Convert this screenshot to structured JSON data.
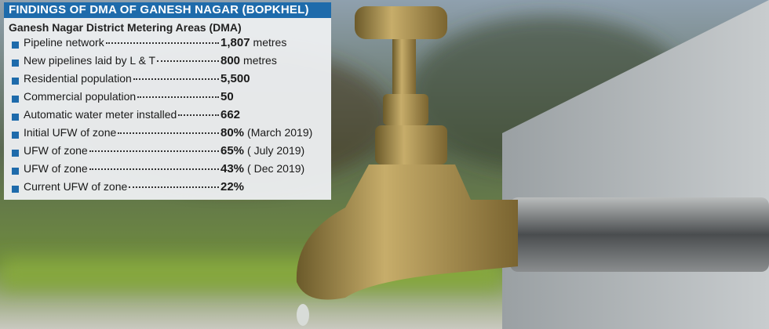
{
  "header": {
    "title": "FINDINGS OF DMA OF GANESH NAGAR (BOPKHEL)",
    "subtitle": "Ganesh Nagar District Metering Areas (DMA)"
  },
  "table": {
    "rows": [
      {
        "label": "Pipeline network",
        "value": "1,807",
        "note": "metres"
      },
      {
        "label": "New pipelines laid by L & T",
        "value": "800",
        "note": "metres"
      },
      {
        "label": "Residential population",
        "value": "5,500"
      },
      {
        "label": "Commercial population",
        "value": "50"
      },
      {
        "label": "Automatic water meter installed",
        "value": "662"
      },
      {
        "label": "Initial UFW of zone",
        "value": "80%",
        "note": "(March 2019)"
      },
      {
        "label": "UFW of zone",
        "value": "65%",
        "note": "( July 2019)"
      },
      {
        "label": "UFW of zone",
        "value": "43%",
        "note": "( Dec 2019)"
      },
      {
        "label": "Current UFW of zone",
        "value": "22%"
      }
    ]
  }
}
